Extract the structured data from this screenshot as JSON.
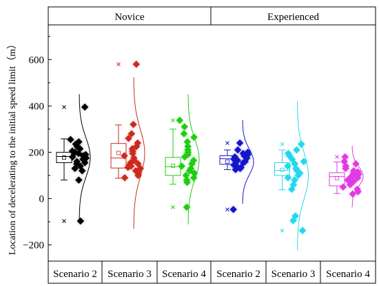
{
  "chart_data": {
    "type": "box",
    "ylabel": "Location of decelerating to the initial speed limit（m）",
    "ylim": [
      -270,
      750
    ],
    "yticks": [
      -200,
      0,
      200,
      400,
      600
    ],
    "group_labels": [
      "Novice",
      "Experienced"
    ],
    "categories": [
      "Scenario 2",
      "Scenario 3",
      "Scenario 4",
      "Scenario 2",
      "Scenario 3",
      "Scenario 4"
    ],
    "series": [
      {
        "group": "Novice",
        "scenario": "Scenario 2",
        "color": "#000000",
        "q1": 155,
        "median": 182,
        "q3": 200,
        "whisker_low": 80,
        "whisker_high": 258,
        "mean": 177,
        "outliers": [
          395,
          -97
        ],
        "points": [
          395,
          255,
          245,
          235,
          225,
          215,
          205,
          200,
          195,
          190,
          185,
          180,
          175,
          170,
          160,
          155,
          150,
          140,
          130,
          120,
          80,
          -97
        ]
      },
      {
        "group": "Novice",
        "scenario": "Scenario 3",
        "color": "#cc2a1e",
        "q1": 132,
        "median": 175,
        "q3": 238,
        "whisker_low": 88,
        "whisker_high": 318,
        "mean": 197,
        "outliers": [
          580
        ],
        "points": [
          580,
          320,
          280,
          260,
          240,
          225,
          215,
          205,
          195,
          185,
          175,
          165,
          155,
          150,
          145,
          140,
          135,
          130,
          120,
          110,
          100,
          90
        ]
      },
      {
        "group": "Novice",
        "scenario": "Scenario 4",
        "color": "#22cc11",
        "q1": 100,
        "median": 138,
        "q3": 178,
        "whisker_low": 62,
        "whisker_high": 300,
        "mean": 142,
        "outliers": [
          338,
          -37
        ],
        "points": [
          338,
          310,
          280,
          265,
          245,
          225,
          210,
          200,
          190,
          180,
          165,
          150,
          140,
          130,
          120,
          110,
          100,
          90,
          80,
          70,
          -37
        ]
      },
      {
        "group": "Experienced",
        "scenario": "Scenario 2",
        "color": "#1515cc",
        "q1": 148,
        "median": 172,
        "q3": 185,
        "whisker_low": 125,
        "whisker_high": 210,
        "mean": 160,
        "outliers": [
          240,
          -47
        ],
        "points": [
          240,
          210,
          200,
          195,
          190,
          185,
          180,
          175,
          170,
          165,
          160,
          155,
          150,
          145,
          140,
          135,
          130,
          125,
          -47
        ]
      },
      {
        "group": "Experienced",
        "scenario": "Scenario 3",
        "color": "#22d8ee",
        "q1": 100,
        "median": 122,
        "q3": 155,
        "whisker_low": 38,
        "whisker_high": 210,
        "mean": 124,
        "outliers": [
          235,
          -138
        ],
        "points": [
          235,
          210,
          195,
          185,
          170,
          160,
          150,
          140,
          130,
          120,
          110,
          100,
          90,
          80,
          60,
          40,
          -75,
          -95,
          -138
        ]
      },
      {
        "group": "Experienced",
        "scenario": "Scenario 4",
        "color": "#e23ae2",
        "q1": 55,
        "median": 95,
        "q3": 112,
        "whisker_low": 22,
        "whisker_high": 158,
        "mean": 88,
        "outliers": [
          180
        ],
        "points": [
          180,
          160,
          150,
          140,
          130,
          120,
          115,
          110,
          105,
          100,
          95,
          90,
          85,
          80,
          75,
          70,
          60,
          50,
          40,
          30,
          20
        ]
      }
    ]
  }
}
